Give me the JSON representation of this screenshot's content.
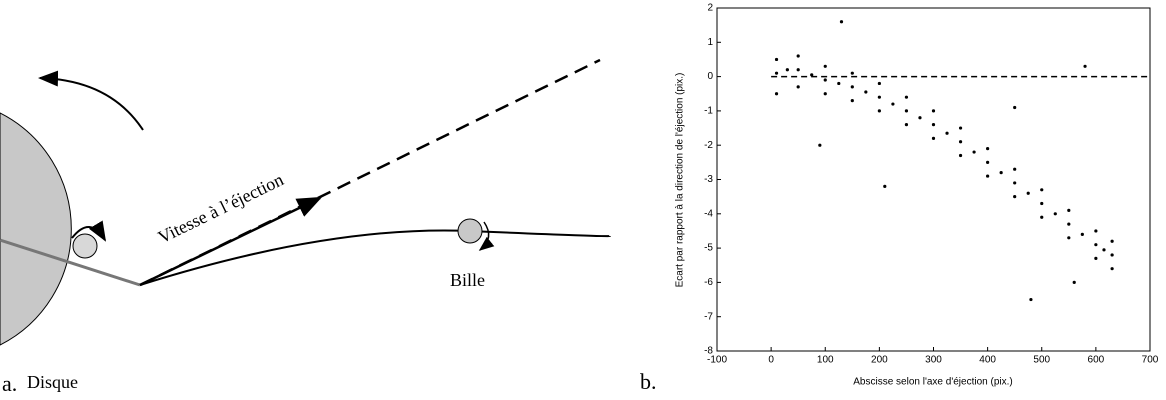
{
  "diagram": {
    "panel_label": "a.",
    "disk_label": "Disque",
    "ball_label": "Bille",
    "velocity_label": "Vitesse à l’éjection"
  },
  "chart_data": {
    "type": "scatter",
    "panel_label": "b.",
    "xlabel": "Abscisse selon l'axe d'éjection (pix.)",
    "ylabel": "Ecart par rapport à la direction de l'éjection (pix.)",
    "xlim": [
      -100,
      700
    ],
    "xticks": [
      -100,
      0,
      100,
      200,
      300,
      400,
      500,
      600,
      700
    ],
    "ylim": [
      -8,
      2
    ],
    "yticks": [
      -8,
      -7,
      -6,
      -5,
      -4,
      -3,
      -2,
      -1,
      0,
      1,
      2
    ],
    "hline": 0,
    "color": "#000000",
    "x": [
      10,
      10,
      10,
      50,
      50,
      50,
      100,
      100,
      100,
      150,
      150,
      150,
      200,
      200,
      200,
      250,
      250,
      250,
      300,
      300,
      300,
      350,
      350,
      350,
      400,
      400,
      400,
      450,
      450,
      450,
      500,
      500,
      500,
      550,
      550,
      550,
      600,
      600,
      600,
      630,
      630,
      630,
      30,
      75,
      125,
      175,
      225,
      275,
      325,
      375,
      425,
      475,
      525,
      575,
      615,
      130,
      210,
      480,
      560,
      450,
      580,
      90
    ],
    "y": [
      0.5,
      0.1,
      -0.5,
      0.6,
      0.2,
      -0.3,
      0.3,
      -0.1,
      -0.5,
      0.1,
      -0.3,
      -0.7,
      -0.2,
      -0.6,
      -1.0,
      -0.6,
      -1.0,
      -1.4,
      -1.0,
      -1.4,
      -1.8,
      -1.5,
      -1.9,
      -2.3,
      -2.1,
      -2.5,
      -2.9,
      -2.7,
      -3.1,
      -3.5,
      -3.3,
      -3.7,
      -4.1,
      -3.9,
      -4.3,
      -4.7,
      -4.5,
      -4.9,
      -5.3,
      -4.8,
      -5.2,
      -5.6,
      0.2,
      0.05,
      -0.2,
      -0.45,
      -0.8,
      -1.2,
      -1.65,
      -2.2,
      -2.8,
      -3.4,
      -4.0,
      -4.6,
      -5.05,
      1.6,
      -3.2,
      -6.5,
      -6.0,
      -0.9,
      0.3,
      -2.0
    ]
  }
}
